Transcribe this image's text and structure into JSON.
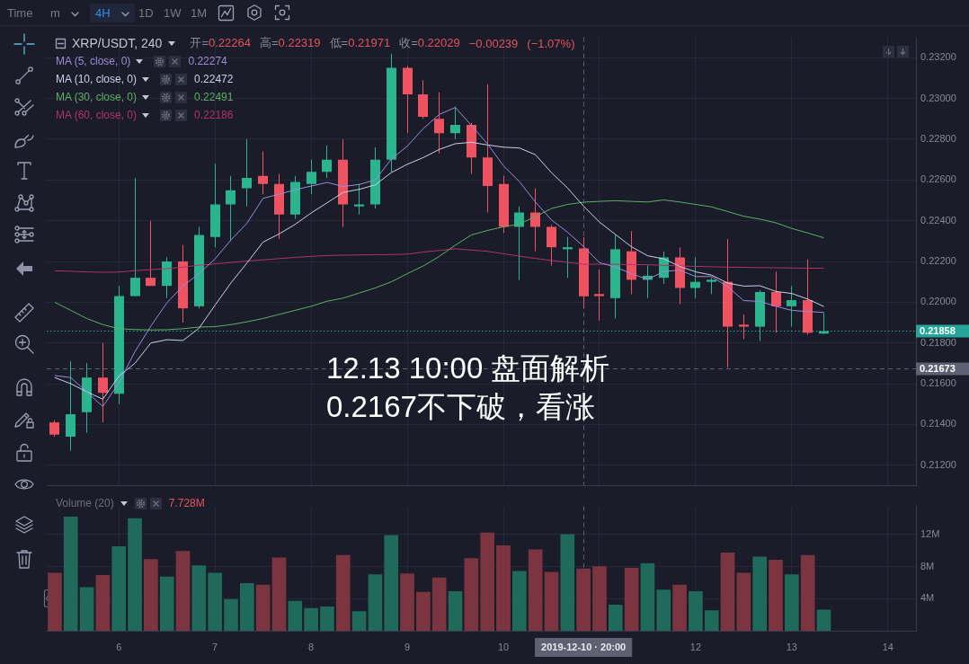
{
  "chart_data": [
    {
      "type": "other",
      "annotations": [
        "Time",
        "m",
        "4H",
        "1D",
        "1W",
        "1M"
      ]
    },
    {
      "type": "candlestick",
      "title": "XRP/USDT, 240",
      "subtitle": "开=0.22264 高=0.22319 低=0.21971 收=0.22029 −0.00239 (−1.07%)",
      "x": [
        "2019-12-05T08:00",
        "2019-12-05T12:00",
        "2019-12-05T16:00",
        "2019-12-05T20:00",
        "2019-12-06T00:00",
        "2019-12-06T04:00",
        "2019-12-06T08:00",
        "2019-12-06T12:00",
        "2019-12-06T16:00",
        "2019-12-06T20:00",
        "2019-12-07T00:00",
        "2019-12-07T04:00",
        "2019-12-07T08:00",
        "2019-12-07T12:00",
        "2019-12-07T16:00",
        "2019-12-07T20:00",
        "2019-12-08T00:00",
        "2019-12-08T04:00",
        "2019-12-08T08:00",
        "2019-12-08T12:00",
        "2019-12-08T16:00",
        "2019-12-08T20:00",
        "2019-12-09T00:00",
        "2019-12-09T04:00",
        "2019-12-09T08:00",
        "2019-12-09T12:00",
        "2019-12-09T16:00",
        "2019-12-09T20:00",
        "2019-12-10T00:00",
        "2019-12-10T04:00",
        "2019-12-10T08:00",
        "2019-12-10T12:00",
        "2019-12-10T16:00",
        "2019-12-10T20:00",
        "2019-12-11T00:00",
        "2019-12-11T04:00",
        "2019-12-11T08:00",
        "2019-12-11T12:00",
        "2019-12-11T16:00",
        "2019-12-11T20:00",
        "2019-12-12T00:00",
        "2019-12-12T04:00",
        "2019-12-12T08:00",
        "2019-12-12T12:00",
        "2019-12-12T16:00",
        "2019-12-12T20:00",
        "2019-12-13T00:00",
        "2019-12-13T04:00",
        "2019-12-13T08:00"
      ],
      "ohlc": [
        [
          0.2141,
          0.2142,
          0.2134,
          0.2135
        ],
        [
          0.2134,
          0.2171,
          0.2127,
          0.2145
        ],
        [
          0.2146,
          0.217,
          0.2136,
          0.2163
        ],
        [
          0.2163,
          0.218,
          0.2141,
          0.21555
        ],
        [
          0.2155,
          0.2208,
          0.215,
          0.2203
        ],
        [
          0.2203,
          0.2261,
          0.2203,
          0.2212
        ],
        [
          0.2212,
          0.224,
          0.2208,
          0.2208
        ],
        [
          0.2208,
          0.2222,
          0.2202,
          0.222
        ],
        [
          0.222,
          0.2228,
          0.219,
          0.2197
        ],
        [
          0.2198,
          0.2237,
          0.2197,
          0.2233
        ],
        [
          0.2232,
          0.2268,
          0.2227,
          0.2248
        ],
        [
          0.2248,
          0.2262,
          0.223,
          0.2255
        ],
        [
          0.2256,
          0.228,
          0.2247,
          0.2261
        ],
        [
          0.2262,
          0.2274,
          0.2253,
          0.2258
        ],
        [
          0.2258,
          0.2263,
          0.2231,
          0.2243
        ],
        [
          0.2243,
          0.2262,
          0.2241,
          0.2259
        ],
        [
          0.2258,
          0.227,
          0.2253,
          0.2264
        ],
        [
          0.2264,
          0.2277,
          0.2261,
          0.227
        ],
        [
          0.227,
          0.228,
          0.2237,
          0.2248
        ],
        [
          0.2247,
          0.2258,
          0.2243,
          0.2248
        ],
        [
          0.2248,
          0.2276,
          0.2246,
          0.227
        ],
        [
          0.227,
          0.2322,
          0.2264,
          0.2315
        ],
        [
          0.2315,
          0.2316,
          0.2283,
          0.2302
        ],
        [
          0.2302,
          0.2309,
          0.229,
          0.2291
        ],
        [
          0.229,
          0.2303,
          0.2273,
          0.2283
        ],
        [
          0.2283,
          0.2296,
          0.228,
          0.2287
        ],
        [
          0.2287,
          0.2288,
          0.2263,
          0.2271
        ],
        [
          0.2271,
          0.2307,
          0.2244,
          0.2257
        ],
        [
          0.2258,
          0.2262,
          0.2234,
          0.2237
        ],
        [
          0.2237,
          0.2247,
          0.2211,
          0.2244
        ],
        [
          0.2244,
          0.2256,
          0.2225,
          0.2237
        ],
        [
          0.2237,
          0.2238,
          0.2218,
          0.2227
        ],
        [
          0.2226,
          0.2232,
          0.2212,
          0.2227
        ],
        [
          0.22264,
          0.22319,
          0.21971,
          0.22029
        ],
        [
          0.2204,
          0.2216,
          0.2191,
          0.2203
        ],
        [
          0.2202,
          0.2233,
          0.2192,
          0.2226
        ],
        [
          0.2225,
          0.2235,
          0.2204,
          0.2211
        ],
        [
          0.2211,
          0.2218,
          0.2202,
          0.2213
        ],
        [
          0.2212,
          0.2225,
          0.2209,
          0.2222
        ],
        [
          0.2222,
          0.2227,
          0.2199,
          0.2207
        ],
        [
          0.2207,
          0.2222,
          0.2202,
          0.221
        ],
        [
          0.221,
          0.2212,
          0.2204,
          0.2211
        ],
        [
          0.221,
          0.2231,
          0.2168,
          0.2188
        ],
        [
          0.2189,
          0.2194,
          0.2182,
          0.2188
        ],
        [
          0.2188,
          0.2206,
          0.2181,
          0.2205
        ],
        [
          0.2205,
          0.2215,
          0.2185,
          0.2198
        ],
        [
          0.2198,
          0.2208,
          0.2188,
          0.2201
        ],
        [
          0.2201,
          0.2221,
          0.2184,
          0.2185
        ],
        [
          0.21846,
          0.2195,
          0.21845,
          0.21858
        ]
      ],
      "colors": [
        "#ef5261",
        "#2bb58e",
        "#2bb58e",
        "#ef5261",
        "#2bb58e",
        "#2bb58e",
        "#ef5261",
        "#2bb58e",
        "#ef5261",
        "#2bb58e",
        "#2bb58e",
        "#2bb58e",
        "#2bb58e",
        "#ef5261",
        "#ef5261",
        "#2bb58e",
        "#2bb58e",
        "#2bb58e",
        "#ef5261",
        "#2bb58e",
        "#2bb58e",
        "#2bb58e",
        "#ef5261",
        "#ef5261",
        "#ef5261",
        "#2bb58e",
        "#ef5261",
        "#ef5261",
        "#ef5261",
        "#2bb58e",
        "#ef5261",
        "#ef5261",
        "#2bb58e",
        "#ef5261",
        "#ef5261",
        "#2bb58e",
        "#ef5261",
        "#2bb58e",
        "#2bb58e",
        "#ef5261",
        "#2bb58e",
        "#2bb58e",
        "#ef5261",
        "#ef5261",
        "#2bb58e",
        "#ef5261",
        "#2bb58e",
        "#ef5261",
        "#2bb58e"
      ],
      "series": [
        {
          "type": "line",
          "name": "MA (5, close, 0)",
          "color": "#9d8bd8",
          "values": [
            0.2164,
            0.2163,
            0.2156,
            0.21488,
            0.21603,
            0.21757,
            0.21883,
            0.21997,
            0.2208,
            0.2214,
            0.22212,
            0.22306,
            0.22388,
            0.2251,
            0.2253,
            0.22552,
            0.2257,
            0.22588,
            0.22568,
            0.22578,
            0.226,
            0.22702,
            0.22766,
            0.22852,
            0.22922,
            0.22956,
            0.22868,
            0.22778,
            0.2267,
            0.22592,
            0.22492,
            0.22404,
            0.22344,
            0.22274,
            0.22194,
            0.22172,
            0.2214,
            0.22112,
            0.2215,
            0.22158,
            0.22126,
            0.22126,
            0.22076,
            0.22008,
            0.22004,
            0.2198,
            0.2196,
            0.21954,
            0.2195
          ]
        },
        {
          "type": "line",
          "name": "MA (10, close, 0)",
          "color": "#c9d1ea",
          "values": [
            0.2163,
            0.216,
            0.2156,
            0.21524,
            0.21637,
            0.217,
            0.218,
            0.21816,
            0.21812,
            0.21872,
            0.21985,
            0.22095,
            0.22193,
            0.22295,
            0.22335,
            0.22382,
            0.22438,
            0.22488,
            0.22539,
            0.22554,
            0.22576,
            0.22636,
            0.22677,
            0.2271,
            0.2275,
            0.22778,
            0.22785,
            0.22772,
            0.22761,
            0.22757,
            0.22724,
            0.22636,
            0.22561,
            0.22472,
            0.22393,
            0.22332,
            0.22272,
            0.22228,
            0.22213,
            0.22176,
            0.22149,
            0.22133,
            0.22094,
            0.22079,
            0.22081,
            0.22053,
            0.22043,
            0.22015,
            0.21979
          ]
        },
        {
          "type": "line",
          "name": "MA (30, close, 0)",
          "color": "#5fae64",
          "values": [
            0.22,
            0.2196,
            0.2192,
            0.2189,
            0.2187,
            0.21866,
            0.21864,
            0.21865,
            0.2187,
            0.21878,
            0.2188,
            0.2189,
            0.21904,
            0.2192,
            0.2194,
            0.2196,
            0.2198,
            0.22005,
            0.2202,
            0.22045,
            0.2207,
            0.221,
            0.2214,
            0.22178,
            0.22225,
            0.2228,
            0.2233,
            0.22352,
            0.2237,
            0.22384,
            0.2242,
            0.2246,
            0.2248,
            0.22491,
            0.22495,
            0.22498,
            0.22495,
            0.22492,
            0.22502,
            0.22492,
            0.2248,
            0.22468,
            0.22445,
            0.22422,
            0.22408,
            0.2239,
            0.22362,
            0.2234,
            0.22316
          ]
        },
        {
          "type": "line",
          "name": "MA (60, close, 0)",
          "color": "#b2326c",
          "values": [
            0.22154,
            0.22152,
            0.22149,
            0.22147,
            0.22148,
            0.22155,
            0.2216,
            0.22165,
            0.22172,
            0.22182,
            0.22188,
            0.22195,
            0.22202,
            0.22208,
            0.22214,
            0.2222,
            0.22225,
            0.22229,
            0.22231,
            0.22232,
            0.22233,
            0.22234,
            0.22236,
            0.22246,
            0.22254,
            0.22262,
            0.22256,
            0.2225,
            0.22238,
            0.22226,
            0.22215,
            0.22205,
            0.22196,
            0.22186,
            0.22187,
            0.22186,
            0.22185,
            0.22184,
            0.22181,
            0.22178,
            0.22176,
            0.22174,
            0.22172,
            0.22171,
            0.2217,
            0.22169,
            0.22168,
            0.22167,
            0.22167
          ]
        }
      ],
      "xlim": [
        "2019-12-05T06:00",
        "2019-12-14T07:00"
      ],
      "xticks": [
        {
          "value": "2019-12-06",
          "label": null
        },
        {
          "value": "2019-12-07",
          "label": null
        },
        {
          "value": "2019-12-08",
          "label": null
        },
        {
          "value": "2019-12-09",
          "label": null
        },
        {
          "value": "2019-12-10",
          "label": null
        },
        {
          "value": "2019-12-11",
          "label": null
        },
        {
          "value": "2019-12-12",
          "label": null
        },
        {
          "value": "2019-12-13",
          "label": null
        },
        {
          "value": "2019-12-14",
          "label": null
        }
      ],
      "ylim": [
        0.211,
        0.233
      ],
      "yticks": [
        {
          "value": 0.212,
          "label": "0.21200"
        },
        {
          "value": 0.214,
          "label": "0.21400"
        },
        {
          "value": 0.216,
          "label": "0.21600"
        },
        {
          "value": 0.218,
          "label": "0.21800"
        },
        {
          "value": 0.22,
          "label": "0.22000"
        },
        {
          "value": 0.222,
          "label": "0.22200"
        },
        {
          "value": 0.224,
          "label": "0.22400"
        },
        {
          "value": 0.226,
          "label": "0.22600"
        },
        {
          "value": 0.228,
          "label": "0.22800"
        },
        {
          "value": 0.23,
          "label": "0.23000"
        },
        {
          "value": 0.232,
          "label": "0.23200"
        }
      ],
      "ref_lines": [
        {
          "axis": "y",
          "value": 0.21858,
          "label": "0.21858",
          "color": "#26a69a",
          "line_style": "dotted"
        },
        {
          "axis": "y",
          "value": 0.21673,
          "label": "0.21673",
          "color": "#5d6172",
          "line_style": "dashed"
        },
        {
          "axis": "x",
          "value": "2019-12-10T20:00",
          "color": "#5d6172",
          "line_style": "dashed"
        }
      ],
      "annotations": [
        "0.22274",
        "0.22472",
        "0.22491",
        "0.22186",
        "12.13 10:00 盘面解析",
        "0.2167不下破，看涨"
      ],
      "grid": true,
      "legend": "top left",
      "tick_labels": "y"
    },
    {
      "type": "bar",
      "title": "Volume (20)",
      "x": [
        "2019-12-05T08:00",
        "2019-12-05T12:00",
        "2019-12-05T16:00",
        "2019-12-05T20:00",
        "2019-12-06T00:00",
        "2019-12-06T04:00",
        "2019-12-06T08:00",
        "2019-12-06T12:00",
        "2019-12-06T16:00",
        "2019-12-06T20:00",
        "2019-12-07T00:00",
        "2019-12-07T04:00",
        "2019-12-07T08:00",
        "2019-12-07T12:00",
        "2019-12-07T16:00",
        "2019-12-07T20:00",
        "2019-12-08T00:00",
        "2019-12-08T04:00",
        "2019-12-08T08:00",
        "2019-12-08T12:00",
        "2019-12-08T16:00",
        "2019-12-08T20:00",
        "2019-12-09T00:00",
        "2019-12-09T04:00",
        "2019-12-09T08:00",
        "2019-12-09T12:00",
        "2019-12-09T16:00",
        "2019-12-09T20:00",
        "2019-12-10T00:00",
        "2019-12-10T04:00",
        "2019-12-10T08:00",
        "2019-12-10T12:00",
        "2019-12-10T16:00",
        "2019-12-10T20:00",
        "2019-12-11T00:00",
        "2019-12-11T04:00",
        "2019-12-11T08:00",
        "2019-12-11T12:00",
        "2019-12-11T16:00",
        "2019-12-11T20:00",
        "2019-12-12T00:00",
        "2019-12-12T04:00",
        "2019-12-12T08:00",
        "2019-12-12T12:00",
        "2019-12-12T16:00",
        "2019-12-12T20:00",
        "2019-12-13T00:00",
        "2019-12-13T04:00",
        "2019-12-13T08:00"
      ],
      "values": [
        7200000,
        14200000,
        5400000,
        6900000,
        10500000,
        14000000,
        8900000,
        6700000,
        9900000,
        8100000,
        7200000,
        3900000,
        5900000,
        5700000,
        9100000,
        3700000,
        2800000,
        3000000,
        9400000,
        2400000,
        7000000,
        11900000,
        7100000,
        4800000,
        6600000,
        4900000,
        9000000,
        12200000,
        10600000,
        7400000,
        10100000,
        7300000,
        12000000,
        7728000,
        8000000,
        3200000,
        7800000,
        8400000,
        5100000,
        5700000,
        4900000,
        2500000,
        9700000,
        7200000,
        9200000,
        8800000,
        7000000,
        9400000,
        2600000
      ],
      "colors": [
        "#7c3540",
        "#1f6a5b",
        "#1f6a5b",
        "#7c3540",
        "#1f6a5b",
        "#1f6a5b",
        "#7c3540",
        "#1f6a5b",
        "#7c3540",
        "#1f6a5b",
        "#1f6a5b",
        "#1f6a5b",
        "#1f6a5b",
        "#7c3540",
        "#7c3540",
        "#1f6a5b",
        "#1f6a5b",
        "#1f6a5b",
        "#7c3540",
        "#1f6a5b",
        "#1f6a5b",
        "#1f6a5b",
        "#7c3540",
        "#7c3540",
        "#7c3540",
        "#1f6a5b",
        "#7c3540",
        "#7c3540",
        "#7c3540",
        "#1f6a5b",
        "#7c3540",
        "#7c3540",
        "#1f6a5b",
        "#7c3540",
        "#7c3540",
        "#1f6a5b",
        "#7c3540",
        "#1f6a5b",
        "#1f6a5b",
        "#7c3540",
        "#1f6a5b",
        "#1f6a5b",
        "#7c3540",
        "#7c3540",
        "#1f6a5b",
        "#7c3540",
        "#1f6a5b",
        "#7c3540",
        "#1f6a5b"
      ],
      "xlim": [
        "2019-12-05T06:00",
        "2019-12-14T07:00"
      ],
      "xticks": [
        {
          "value": "2019-12-06",
          "label": "6"
        },
        {
          "value": "2019-12-07",
          "label": "7"
        },
        {
          "value": "2019-12-08",
          "label": "8"
        },
        {
          "value": "2019-12-09",
          "label": "9"
        },
        {
          "value": "2019-12-10",
          "label": "10"
        },
        {
          "value": "2019-12-11",
          "label": null
        },
        {
          "value": "2019-12-12",
          "label": "12"
        },
        {
          "value": "2019-12-13",
          "label": "13"
        },
        {
          "value": "2019-12-14",
          "label": "14"
        }
      ],
      "ylim": [
        0,
        15500000
      ],
      "yticks": [
        {
          "value": 4000000,
          "label": "4M"
        },
        {
          "value": 8000000,
          "label": "8M"
        },
        {
          "value": 12000000,
          "label": "12M"
        }
      ],
      "ref_lines": [
        {
          "axis": "x",
          "value": "2019-12-10T20:00",
          "label": "2019-12-10 · 20:00",
          "color": "#5d6172",
          "line_style": "dashed"
        }
      ],
      "annotations": [
        "7.728M"
      ],
      "grid": true
    }
  ]
}
